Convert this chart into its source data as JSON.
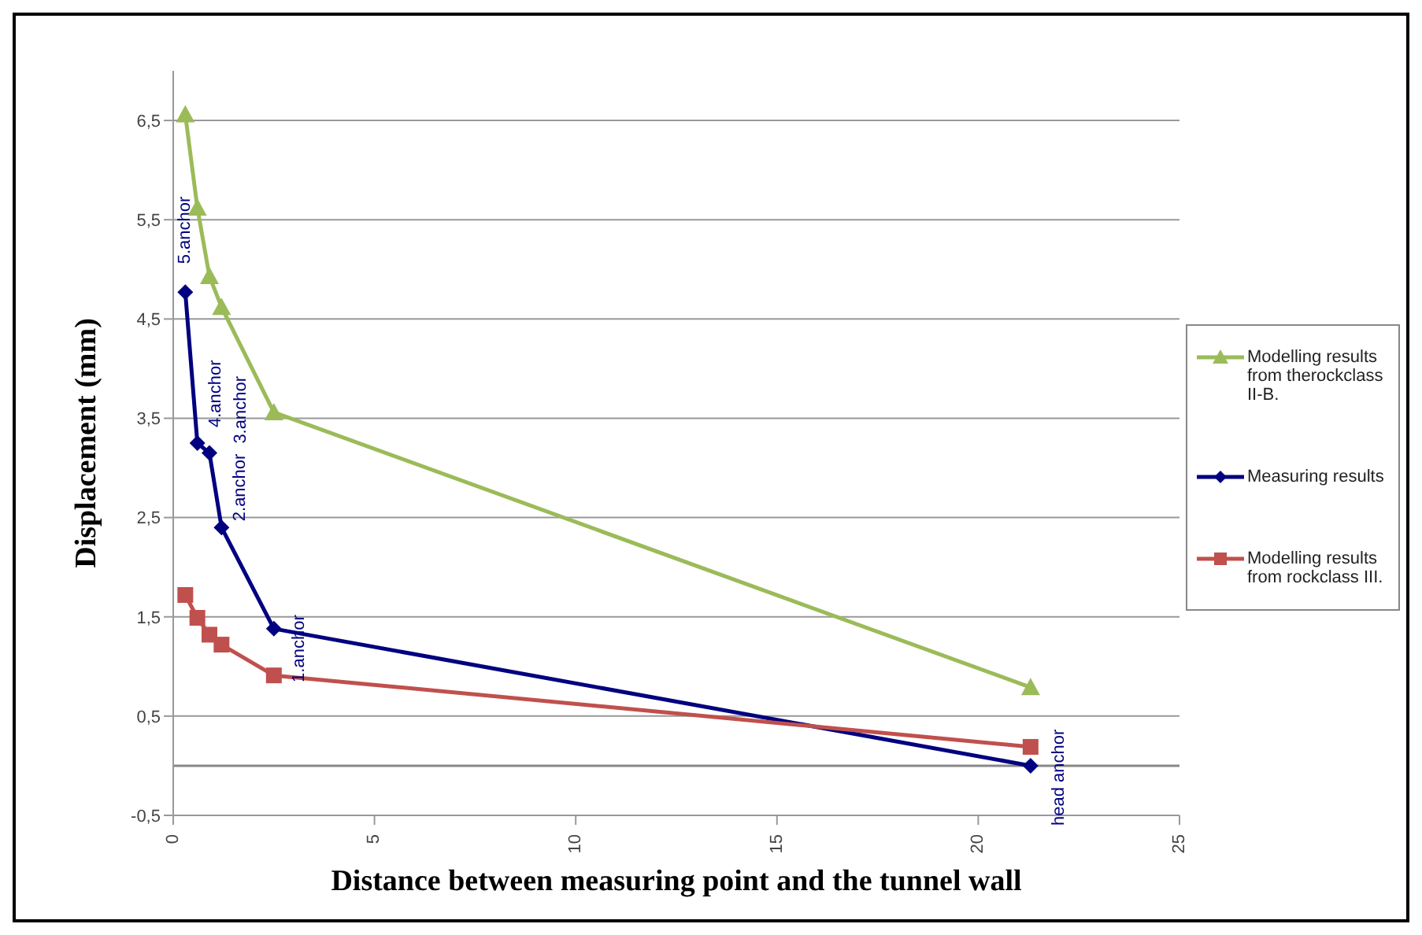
{
  "chart_data": {
    "type": "line",
    "xlabel": "Distance between measuring  point and the tunnel wall",
    "ylabel": "Displacement (mm)",
    "xlim": [
      0,
      25
    ],
    "xticks": [
      0,
      5,
      10,
      15,
      20,
      25
    ],
    "ylim": [
      -0.5,
      7
    ],
    "yticks": [
      {
        "value": -0.5,
        "label": "-0,5"
      },
      {
        "value": 0.5,
        "label": "0,5"
      },
      {
        "value": 1.5,
        "label": "1,5"
      },
      {
        "value": 2.5,
        "label": "2,5"
      },
      {
        "value": 3.5,
        "label": "3,5"
      },
      {
        "value": 4.5,
        "label": "4,5"
      },
      {
        "value": 5.5,
        "label": "5,5"
      },
      {
        "value": 6.5,
        "label": "6,5"
      }
    ],
    "grid": "y",
    "legend": "right",
    "line_style": "solid",
    "x": [
      0.3,
      0.6,
      0.9,
      1.2,
      2.5,
      21.3
    ],
    "series": [
      {
        "name": "Modelling results from therockclass II-B.",
        "color": "#9bbb59",
        "marker": "triangle",
        "values": [
          6.56,
          5.62,
          4.93,
          4.62,
          3.56,
          0.79
        ]
      },
      {
        "name": "Measuring results",
        "color": "#000080",
        "marker": "diamond",
        "values": [
          4.77,
          3.25,
          3.15,
          2.4,
          1.38,
          0
        ]
      },
      {
        "name": "Modelling results from rockclass III.",
        "color": "#c0504d",
        "marker": "square",
        "values": [
          1.72,
          1.49,
          1.32,
          1.22,
          0.91,
          0.19
        ]
      }
    ],
    "ref_lines": [
      {
        "axis": "y",
        "value": 0,
        "color": "#888888"
      }
    ],
    "annotations": [
      {
        "text": "5.anchor",
        "x": 0.3,
        "y": 4.77
      },
      {
        "text": "4.anchor",
        "x": 0.6,
        "y": 3.25
      },
      {
        "text": "3.anchor",
        "x": 0.9,
        "y": 3.15
      },
      {
        "text": "2.anchor",
        "x": 1.2,
        "y": 2.4
      },
      {
        "text": "1.anchor",
        "x": 2.5,
        "y": 1.38
      },
      {
        "text": "head anchor",
        "x": 21.3,
        "y": 0
      }
    ]
  }
}
